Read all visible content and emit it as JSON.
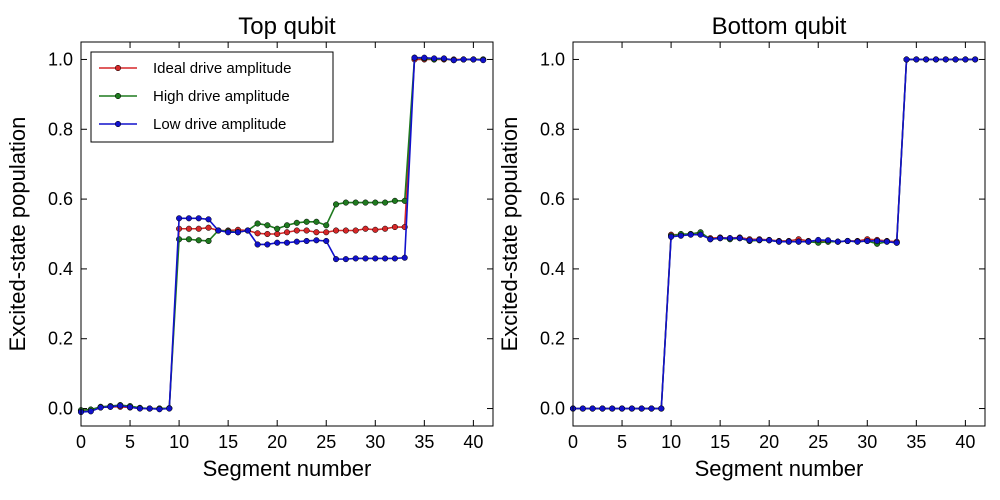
{
  "chart_data": [
    {
      "type": "line",
      "title": "Top qubit",
      "xlabel": "Segment number",
      "ylabel": "Excited-state population",
      "xlim": [
        0,
        42
      ],
      "ylim": [
        -0.05,
        1.05
      ],
      "xticks": [
        0,
        5,
        10,
        15,
        20,
        25,
        30,
        35,
        40
      ],
      "yticks": [
        0.0,
        0.2,
        0.4,
        0.6,
        0.8,
        1.0
      ],
      "xtick_labels": [
        "0",
        "5",
        "10",
        "15",
        "20",
        "25",
        "30",
        "35",
        "40"
      ],
      "ytick_labels": [
        "0.0",
        "0.2",
        "0.4",
        "0.6",
        "0.8",
        "1.0"
      ],
      "grid": false,
      "legend": "top-left",
      "x": [
        0,
        1,
        2,
        3,
        4,
        5,
        6,
        7,
        8,
        9,
        10,
        11,
        12,
        13,
        14,
        15,
        16,
        17,
        18,
        19,
        20,
        21,
        22,
        23,
        24,
        25,
        26,
        27,
        28,
        29,
        30,
        31,
        32,
        33,
        34,
        35,
        36,
        37,
        38,
        39,
        40,
        41
      ],
      "series": [
        {
          "name": "Ideal drive amplitude",
          "color": "#d62728",
          "values": [
            -0.005,
            -0.003,
            0.003,
            0.005,
            0.005,
            0.003,
            0.001,
            0.0,
            0.0,
            0.001,
            0.515,
            0.515,
            0.515,
            0.518,
            0.51,
            0.51,
            0.512,
            0.51,
            0.502,
            0.5,
            0.5,
            0.505,
            0.51,
            0.51,
            0.505,
            0.505,
            0.51,
            0.51,
            0.51,
            0.515,
            0.512,
            0.515,
            0.52,
            0.52,
            1.0,
            1.0,
            1.0,
            1.0,
            1.0,
            1.0,
            1.0,
            1.0
          ]
        },
        {
          "name": "High drive amplitude",
          "color": "#1f7a1f",
          "values": [
            -0.005,
            -0.003,
            0.005,
            0.007,
            0.01,
            0.007,
            0.002,
            0.0,
            0.0,
            0.001,
            0.485,
            0.485,
            0.482,
            0.48,
            0.51,
            0.508,
            0.505,
            0.51,
            0.53,
            0.525,
            0.515,
            0.525,
            0.532,
            0.535,
            0.535,
            0.525,
            0.585,
            0.59,
            0.59,
            0.59,
            0.59,
            0.59,
            0.595,
            0.595,
            1.005,
            1.003,
            1.0,
            1.002,
            0.998,
            1.0,
            1.0,
            1.0
          ]
        },
        {
          "name": "Low drive amplitude",
          "color": "#1111cc",
          "values": [
            -0.01,
            -0.008,
            0.003,
            0.005,
            0.008,
            0.004,
            0.0,
            0.0,
            -0.002,
            0.0,
            0.545,
            0.545,
            0.545,
            0.542,
            0.51,
            0.505,
            0.505,
            0.51,
            0.47,
            0.47,
            0.475,
            0.475,
            0.478,
            0.48,
            0.482,
            0.48,
            0.428,
            0.428,
            0.43,
            0.43,
            0.43,
            0.43,
            0.43,
            0.432,
            1.005,
            1.005,
            1.003,
            1.003,
            0.998,
            1.0,
            1.0,
            0.998
          ]
        }
      ]
    },
    {
      "type": "line",
      "title": "Bottom qubit",
      "xlabel": "Segment number",
      "ylabel": "Excited-state population",
      "xlim": [
        0,
        42
      ],
      "ylim": [
        -0.05,
        1.05
      ],
      "xticks": [
        0,
        5,
        10,
        15,
        20,
        25,
        30,
        35,
        40
      ],
      "yticks": [
        0.0,
        0.2,
        0.4,
        0.6,
        0.8,
        1.0
      ],
      "xtick_labels": [
        "0",
        "5",
        "10",
        "15",
        "20",
        "25",
        "30",
        "35",
        "40"
      ],
      "ytick_labels": [
        "0.0",
        "0.2",
        "0.4",
        "0.6",
        "0.8",
        "1.0"
      ],
      "grid": false,
      "x": [
        0,
        1,
        2,
        3,
        4,
        5,
        6,
        7,
        8,
        9,
        10,
        11,
        12,
        13,
        14,
        15,
        16,
        17,
        18,
        19,
        20,
        21,
        22,
        23,
        24,
        25,
        26,
        27,
        28,
        29,
        30,
        31,
        32,
        33,
        34,
        35,
        36,
        37,
        38,
        39,
        40,
        41
      ],
      "series": [
        {
          "color": "#d62728",
          "values": [
            0,
            0,
            0,
            0,
            0,
            0,
            0,
            0,
            0,
            0,
            0.498,
            0.498,
            0.5,
            0.5,
            0.488,
            0.49,
            0.488,
            0.49,
            0.485,
            0.485,
            0.483,
            0.48,
            0.48,
            0.485,
            0.48,
            0.48,
            0.478,
            0.478,
            0.48,
            0.48,
            0.485,
            0.483,
            0.48,
            0.478,
            1.0,
            1.0,
            1.0,
            1.0,
            1.0,
            1.0,
            1.0,
            1.0
          ]
        },
        {
          "color": "#1f7a1f",
          "values": [
            0,
            0,
            0,
            0,
            0,
            0,
            0,
            0,
            0,
            0,
            0.495,
            0.5,
            0.5,
            0.505,
            0.485,
            0.488,
            0.485,
            0.488,
            0.48,
            0.482,
            0.482,
            0.478,
            0.478,
            0.478,
            0.478,
            0.475,
            0.478,
            0.478,
            0.48,
            0.478,
            0.48,
            0.472,
            0.478,
            0.475,
            1.0,
            1.0,
            1.0,
            1.0,
            1.0,
            1.0,
            1.0,
            1.0
          ]
        },
        {
          "color": "#1111cc",
          "values": [
            0,
            0,
            0,
            0,
            0,
            0,
            0,
            0,
            0,
            0,
            0.492,
            0.495,
            0.498,
            0.498,
            0.485,
            0.488,
            0.488,
            0.488,
            0.482,
            0.483,
            0.482,
            0.478,
            0.478,
            0.478,
            0.478,
            0.483,
            0.482,
            0.478,
            0.48,
            0.478,
            0.48,
            0.48,
            0.478,
            0.475,
            1.0,
            1.0,
            1.0,
            1.0,
            1.0,
            1.0,
            1.0,
            1.0
          ]
        }
      ]
    }
  ]
}
